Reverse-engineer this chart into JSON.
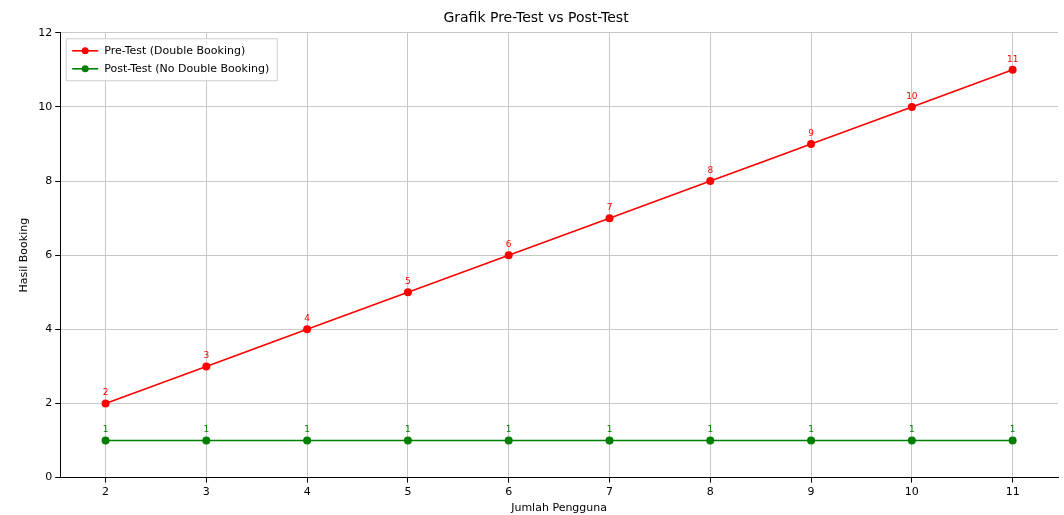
{
  "chart_data": {
    "type": "line",
    "title": "Grafik Pre-Test vs Post-Test",
    "xlabel": "Jumlah Pengguna",
    "ylabel": "Hasil Booking",
    "x": [
      2,
      3,
      4,
      5,
      6,
      7,
      8,
      9,
      10,
      11
    ],
    "series": [
      {
        "name": "Pre-Test (Double Booking)",
        "color": "#ff0000",
        "values": [
          2,
          3,
          4,
          5,
          6,
          7,
          8,
          9,
          10,
          11
        ]
      },
      {
        "name": "Post-Test (No Double Booking)",
        "color": "#008000",
        "values": [
          1,
          1,
          1,
          1,
          1,
          1,
          1,
          1,
          1,
          1
        ]
      }
    ],
    "xlim": [
      1.55,
      11.45
    ],
    "xticks": [
      2,
      3,
      4,
      5,
      6,
      7,
      8,
      9,
      10,
      11
    ],
    "ylim": [
      0,
      12
    ],
    "yticks": [
      0,
      2,
      4,
      6,
      8,
      10,
      12
    ],
    "grid": true,
    "legend": "top left",
    "marker": "circle",
    "line_style": "solid",
    "data_labels": true
  }
}
